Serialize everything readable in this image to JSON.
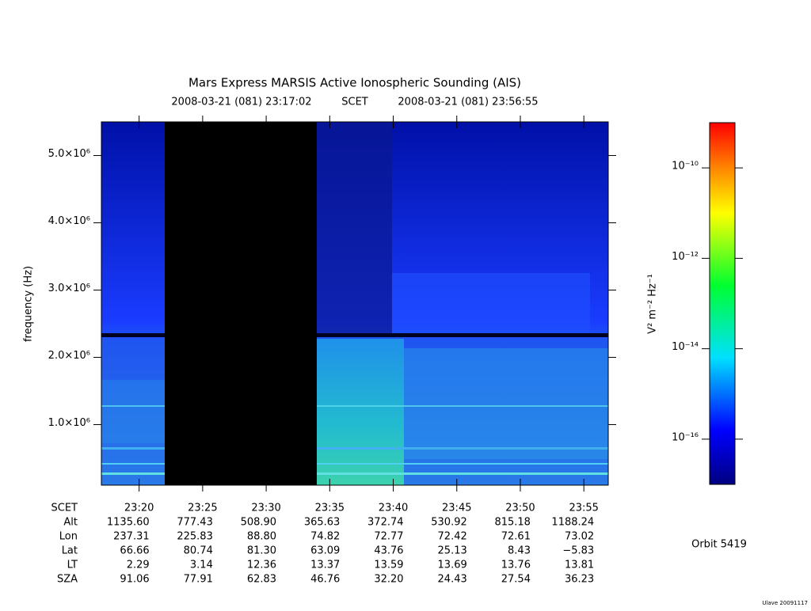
{
  "chart_data": {
    "type": "spectrogram",
    "title": "Mars Express MARSIS Active Ionospheric Sounding (AIS)",
    "start_time": "2008-03-21 (081) 23:17:02",
    "time_label": "SCET",
    "end_time": "2008-03-21 (081) 23:56:55",
    "ylabel": "frequency (Hz)",
    "xlim": [
      1397.03,
      1436.92
    ],
    "xticks": [
      {
        "value": 1400,
        "label": "23:20"
      },
      {
        "value": 1405,
        "label": "23:25"
      },
      {
        "value": 1410,
        "label": "23:30"
      },
      {
        "value": 1415,
        "label": "23:35"
      },
      {
        "value": 1420,
        "label": "23:40"
      },
      {
        "value": 1425,
        "label": "23:45"
      },
      {
        "value": 1430,
        "label": "23:50"
      },
      {
        "value": 1435,
        "label": "23:55"
      }
    ],
    "ylim": [
      100000,
      5500000
    ],
    "yticks": [
      {
        "value": 1000000,
        "label": "1.0×10⁶"
      },
      {
        "value": 2000000,
        "label": "2.0×10⁶"
      },
      {
        "value": 3000000,
        "label": "3.0×10⁶"
      },
      {
        "value": 4000000,
        "label": "4.0×10⁶"
      },
      {
        "value": 5000000,
        "label": "5.0×10⁶"
      }
    ],
    "colorbar_label": "V² m⁻² Hz⁻¹",
    "zscale": "log",
    "zlim": [
      1e-17,
      1e-09
    ],
    "zticks": [
      {
        "value": 1e-10,
        "label": "10⁻¹⁰"
      },
      {
        "value": 1e-12,
        "label": "10⁻¹²"
      },
      {
        "value": 1e-14,
        "label": "10⁻¹⁴"
      },
      {
        "value": 1e-16,
        "label": "10⁻¹⁶"
      }
    ],
    "ephemeris": [
      {
        "name": "Alt",
        "values": [
          "1135.60",
          "777.43",
          "508.90",
          "365.63",
          "372.74",
          "530.92",
          "815.18",
          "1188.24"
        ]
      },
      {
        "name": "Lon",
        "values": [
          "237.31",
          "225.83",
          "88.80",
          "74.82",
          "72.77",
          "72.42",
          "72.61",
          "73.02"
        ]
      },
      {
        "name": "Lat",
        "values": [
          "66.66",
          "80.74",
          "81.30",
          "63.09",
          "43.76",
          "25.13",
          "8.43",
          "−5.83"
        ]
      },
      {
        "name": "LT",
        "values": [
          "2.29",
          "3.14",
          "12.36",
          "13.37",
          "13.59",
          "13.69",
          "13.76",
          "13.81"
        ]
      },
      {
        "name": "SZA",
        "values": [
          "91.06",
          "77.91",
          "62.83",
          "46.76",
          "32.20",
          "24.43",
          "27.54",
          "36.23"
        ]
      }
    ],
    "orbit": "Orbit 5419",
    "footer": "Ulave 20091117"
  }
}
